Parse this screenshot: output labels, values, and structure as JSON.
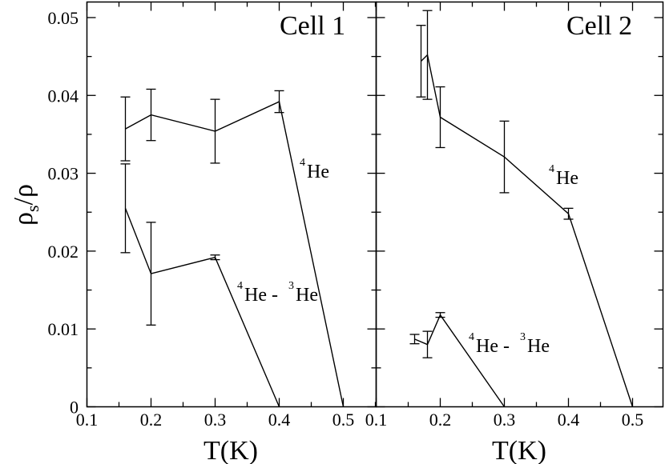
{
  "chart_data": [
    {
      "type": "line",
      "panel_label": "Cell 1",
      "xlabel": "T(K)",
      "ylabel": "ρs/ρ",
      "xlim": [
        0.1,
        0.55
      ],
      "ylim": [
        0,
        0.052
      ],
      "xticks": [
        "0.1",
        "0.2",
        "0.3",
        "0.4",
        "0.5"
      ],
      "yticks": [
        "0",
        "0.01",
        "0.02",
        "0.03",
        "0.04",
        "0.05"
      ],
      "series": [
        {
          "name": "4He",
          "points": [
            {
              "x": 0.16,
              "y": 0.0357,
              "err": 0.0041
            },
            {
              "x": 0.2,
              "y": 0.0375,
              "err": 0.0033
            },
            {
              "x": 0.3,
              "y": 0.0354,
              "err": 0.0041
            },
            {
              "x": 0.4,
              "y": 0.0392,
              "err": 0.0014
            },
            {
              "x": 0.5,
              "y": 0.0
            }
          ]
        },
        {
          "name": "4He - 3He",
          "points": [
            {
              "x": 0.16,
              "y": 0.0255,
              "err": 0.0057
            },
            {
              "x": 0.2,
              "y": 0.0171,
              "err": 0.0066
            },
            {
              "x": 0.3,
              "y": 0.0192,
              "err": 0.0003
            },
            {
              "x": 0.4,
              "y": 0.0
            }
          ]
        }
      ]
    },
    {
      "type": "line",
      "panel_label": "Cell 2",
      "xlabel": "T(K)",
      "ylabel": "",
      "xlim": [
        0.1,
        0.55
      ],
      "ylim": [
        0,
        0.052
      ],
      "xticks": [
        "0.1",
        "0.2",
        "0.3",
        "0.4",
        "0.5"
      ],
      "yticks": [],
      "series": [
        {
          "name": "4He",
          "points": [
            {
              "x": 0.17,
              "y": 0.0444,
              "err": 0.0046
            },
            {
              "x": 0.18,
              "y": 0.0452,
              "err": 0.0057
            },
            {
              "x": 0.2,
              "y": 0.0372,
              "err": 0.0039
            },
            {
              "x": 0.3,
              "y": 0.0321,
              "err": 0.0046
            },
            {
              "x": 0.4,
              "y": 0.0248,
              "err": 0.0007
            },
            {
              "x": 0.5,
              "y": 0.0
            }
          ]
        },
        {
          "name": "4He - 3He",
          "points": [
            {
              "x": 0.16,
              "y": 0.0087,
              "err": 0.0006
            },
            {
              "x": 0.18,
              "y": 0.008,
              "err": 0.0017
            },
            {
              "x": 0.2,
              "y": 0.0118,
              "err": 0.0003
            },
            {
              "x": 0.3,
              "y": 0.0
            }
          ]
        }
      ]
    }
  ],
  "annotations": {
    "cell1_he4": "4He",
    "cell1_mix": "4He - 3He",
    "cell2_he4": "4He",
    "cell2_mix": "4He - 3He"
  }
}
